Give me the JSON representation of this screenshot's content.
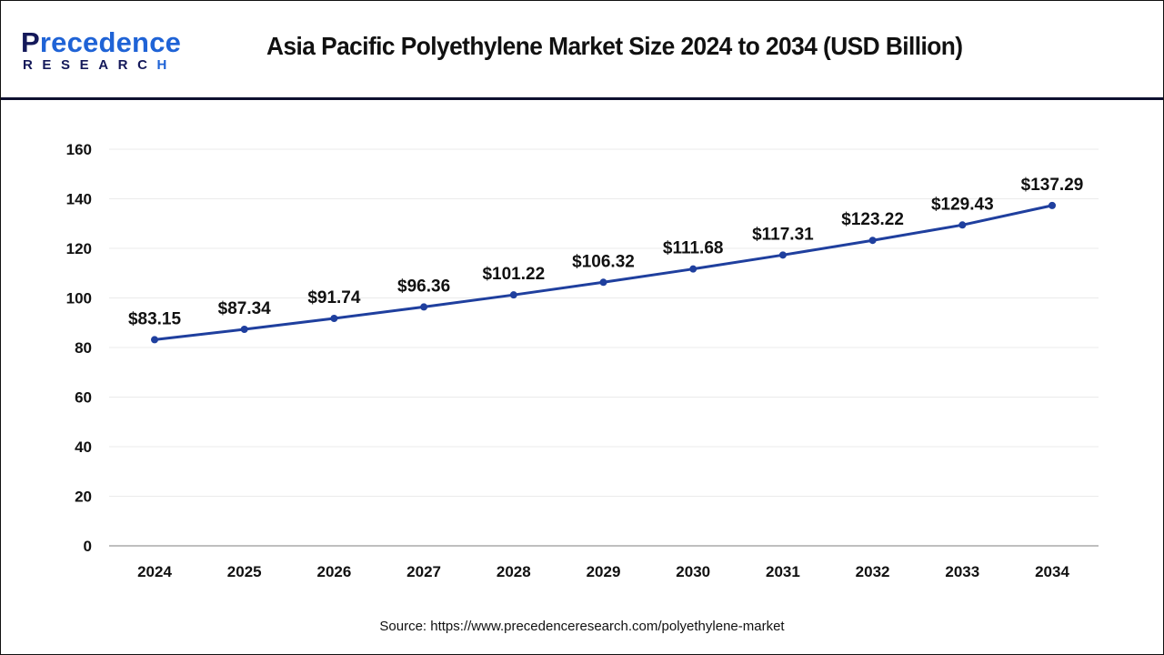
{
  "header": {
    "logo_top_initial": "P",
    "logo_top_rest": "recedence",
    "logo_bottom_main": "RESEARC",
    "logo_bottom_last": "H",
    "title": "Asia Pacific Polyethylene Market Size 2024 to 2034 (USD Billion)"
  },
  "footer": {
    "source": "Source: https://www.precedenceresearch.com/polyethylene-market"
  },
  "colors": {
    "line": "#1f3f9e",
    "point": "#1f3f9e",
    "gridline": "#ebebeb",
    "axis": "#bfbfbf",
    "text": "#111111",
    "header_rule": "#0e1030",
    "logo_dark": "#14195a",
    "logo_blue": "#1f63d6"
  },
  "chart_data": {
    "type": "line",
    "title": "Asia Pacific Polyethylene Market Size 2024 to 2034 (USD Billion)",
    "xlabel": "",
    "ylabel": "",
    "categories": [
      "2024",
      "2025",
      "2026",
      "2027",
      "2028",
      "2029",
      "2030",
      "2031",
      "2032",
      "2033",
      "2034"
    ],
    "series": [
      {
        "name": "Market Size (USD Billion)",
        "values": [
          83.15,
          87.34,
          91.74,
          96.36,
          101.22,
          106.32,
          111.68,
          117.31,
          123.22,
          129.43,
          137.29
        ],
        "labels": [
          "$83.15",
          "$87.34",
          "$91.74",
          "$96.36",
          "$101.22",
          "$106.32",
          "$111.68",
          "$117.31",
          "$123.22",
          "$129.43",
          "$137.29"
        ]
      }
    ],
    "ylim": [
      0,
      160
    ],
    "yticks": [
      0,
      20,
      40,
      60,
      80,
      100,
      120,
      140,
      160
    ],
    "grid": true,
    "legend": "none",
    "source": "Source: https://www.precedenceresearch.com/polyethylene-market"
  }
}
